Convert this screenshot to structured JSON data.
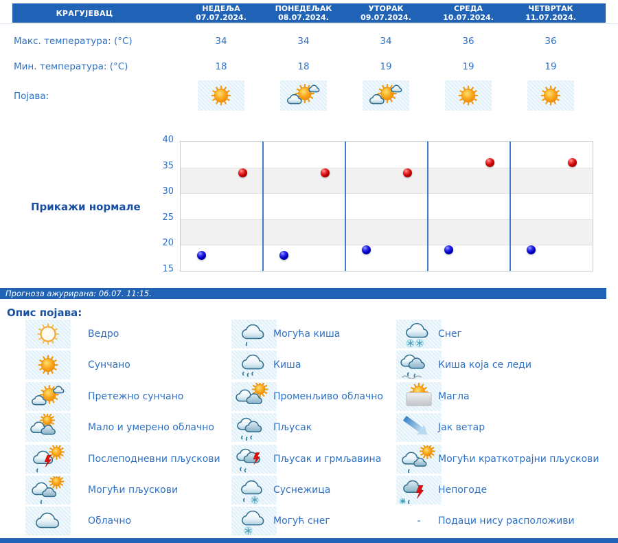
{
  "colors": {
    "bar_blue": "#2062b5",
    "text_blue": "#2e71c4",
    "heading_blue": "#1a50a2",
    "max_dot_red": "#cc0000",
    "min_dot_blue": "#0000cc",
    "chart_divider_blue": "#3d7cc2"
  },
  "header": {
    "city": "КРАГУЈЕВАЦ",
    "days": [
      {
        "name": "НЕДЕЉА",
        "date": "07.07.2024."
      },
      {
        "name": "ПОНЕДЕЉАК",
        "date": "08.07.2024."
      },
      {
        "name": "УТОРАК",
        "date": "09.07.2024."
      },
      {
        "name": "СРЕДА",
        "date": "10.07.2024."
      },
      {
        "name": "ЧЕТВРТАК",
        "date": "11.07.2024."
      }
    ]
  },
  "forecast": {
    "max_temp": {
      "label": "Макс. температура: (°C)",
      "values": [
        "34",
        "34",
        "34",
        "36",
        "36"
      ]
    },
    "min_temp": {
      "label": "Мин. температура: (°C)",
      "values": [
        "18",
        "18",
        "19",
        "19",
        "19"
      ]
    },
    "phenomenon": {
      "label": "Појава:",
      "icons": [
        "sunny",
        "partly-sunny",
        "partly-sunny",
        "sunny",
        "sunny"
      ]
    }
  },
  "normals_link_label": "Прикажи нормале",
  "chart_data": {
    "type": "scatter",
    "categories": [
      "07.07.2024.",
      "08.07.2024.",
      "09.07.2024.",
      "10.07.2024.",
      "11.07.2024."
    ],
    "series": [
      {
        "name": "Макс. температура (°C)",
        "color": "#cc0000",
        "values": [
          34,
          34,
          34,
          36,
          36
        ]
      },
      {
        "name": "Мин. температура (°C)",
        "color": "#0000cc",
        "values": [
          18,
          18,
          19,
          19,
          19
        ]
      }
    ],
    "ylim": [
      15,
      40
    ],
    "yticks": [
      15,
      20,
      25,
      30,
      35,
      40
    ],
    "grid": "horizontal-bands-alternating",
    "day_dividers": true,
    "legend_position": "none",
    "title": "",
    "xlabel": "",
    "ylabel": ""
  },
  "status_bar": {
    "text": "Прогноза ажурирана:  06.07. 11:15."
  },
  "legend": {
    "heading": "Опис појава:",
    "columns": [
      [
        {
          "icon": "clear",
          "label": "Ведро"
        },
        {
          "icon": "sunny",
          "label": "Сунчано"
        },
        {
          "icon": "partly-sunny",
          "label": "Претежно сунчано"
        },
        {
          "icon": "partly-cloudy",
          "label": "Мало и умерено облачно"
        },
        {
          "icon": "afternoon-showers",
          "label": "Послеподневни пљускови"
        },
        {
          "icon": "possible-showers",
          "label": "Могући пљускови"
        },
        {
          "icon": "cloudy",
          "label": "Облачно"
        }
      ],
      [
        {
          "icon": "possible-rain",
          "label": "Могућа киша"
        },
        {
          "icon": "rain",
          "label": "Киша"
        },
        {
          "icon": "variable-cloudy",
          "label": "Променљиво облачно"
        },
        {
          "icon": "shower",
          "label": "Пљусак"
        },
        {
          "icon": "shower-thunder",
          "label": "Пљусак и грмљавина"
        },
        {
          "icon": "sleet",
          "label": "Суснежица"
        },
        {
          "icon": "possible-snow",
          "label": "Могућ снег"
        }
      ],
      [
        {
          "icon": "snow",
          "label": "Снег"
        },
        {
          "icon": "freezing-rain",
          "label": "Киша која се леди"
        },
        {
          "icon": "fog",
          "label": "Магла"
        },
        {
          "icon": "strong-wind",
          "label": "Јак ветар"
        },
        {
          "icon": "possible-brief-showers",
          "label": "Могући краткотрајни пљускови"
        },
        {
          "icon": "storms",
          "label": "Непогоде"
        },
        {
          "icon": "no-data",
          "label": "Подаци нису расположиви"
        }
      ]
    ]
  }
}
